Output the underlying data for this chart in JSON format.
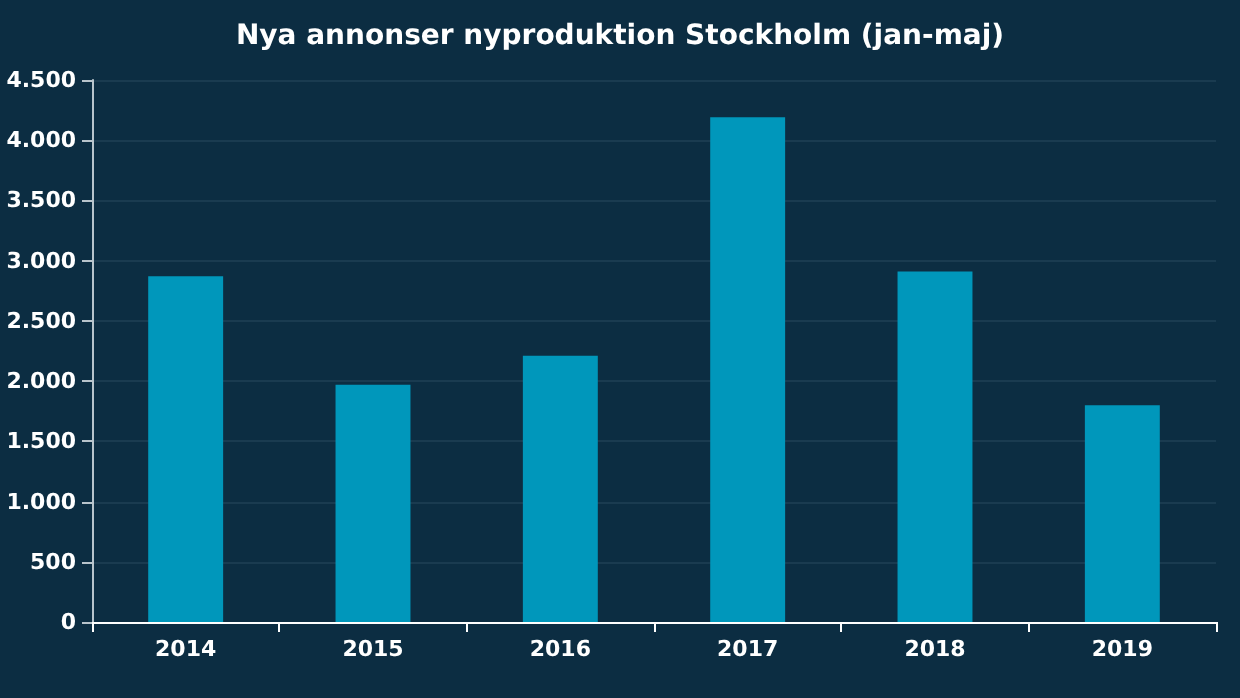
{
  "chart_data": {
    "type": "bar",
    "title": "Nya annonser nyproduktion Stockholm (jan-maj)",
    "categories": [
      "2014",
      "2015",
      "2016",
      "2017",
      "2018",
      "2019"
    ],
    "values": [
      2870,
      1970,
      2210,
      4190,
      2910,
      1800
    ],
    "color": "#0097bb",
    "ylim": [
      0,
      4500
    ],
    "yticks": [
      {
        "value": 0,
        "label": "0"
      },
      {
        "value": 500,
        "label": "500"
      },
      {
        "value": 1000,
        "label": "1.000"
      },
      {
        "value": 1500,
        "label": "1.500"
      },
      {
        "value": 2000,
        "label": "2.000"
      },
      {
        "value": 2500,
        "label": "2.500"
      },
      {
        "value": 3000,
        "label": "3.000"
      },
      {
        "value": 3500,
        "label": "3.500"
      },
      {
        "value": 4000,
        "label": "4.000"
      },
      {
        "value": 4500,
        "label": "4.500"
      }
    ],
    "grid": "y"
  }
}
